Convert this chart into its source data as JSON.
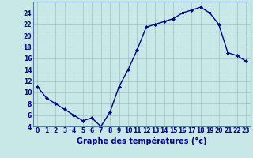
{
  "hours": [
    0,
    1,
    2,
    3,
    4,
    5,
    6,
    7,
    8,
    9,
    10,
    11,
    12,
    13,
    14,
    15,
    16,
    17,
    18,
    19,
    20,
    21,
    22,
    23
  ],
  "temps": [
    11,
    9,
    8,
    7,
    6,
    5,
    5.5,
    4,
    6.5,
    11,
    14,
    17.5,
    21.5,
    22,
    22.5,
    23,
    24,
    24.5,
    25,
    24,
    22,
    17,
    16.5,
    15.5
  ],
  "line_color": "#00008B",
  "marker": "D",
  "marker_size": 2.0,
  "bg_color": "#c8e8e8",
  "grid_color": "#a0c0c0",
  "xlabel": "Graphe des températures (°c)",
  "ylim": [
    4,
    26
  ],
  "yticks": [
    4,
    6,
    8,
    10,
    12,
    14,
    16,
    18,
    20,
    22,
    24
  ],
  "xlabel_color": "#00008B",
  "axis_color": "#00008B",
  "tick_color": "#00008B",
  "line_width": 1.0,
  "tick_fontsize": 5.5,
  "xlabel_fontsize": 7.0
}
